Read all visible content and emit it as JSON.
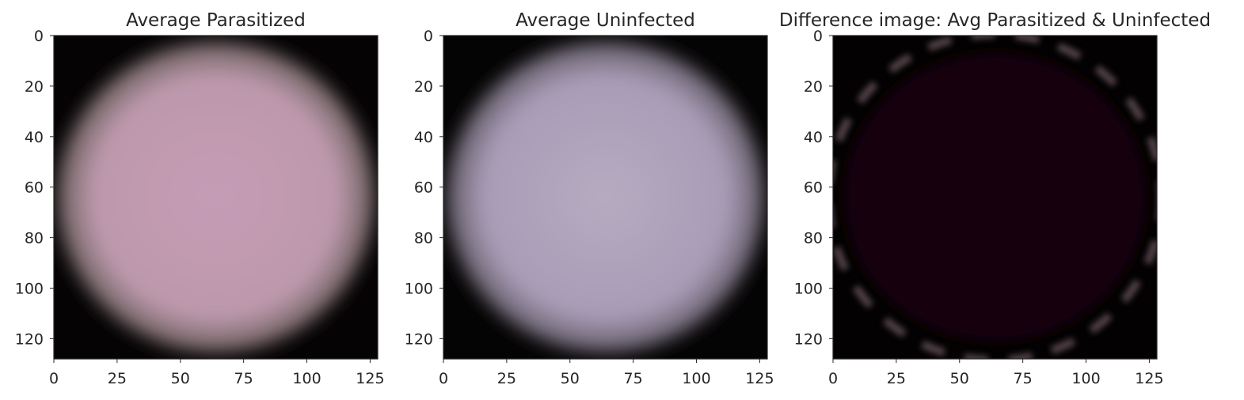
{
  "figure": {
    "panels": [
      {
        "id": "parasitized",
        "title": "Average Parasitized",
        "style": {
          "background": "#050304",
          "cell_color": "#bd99ac",
          "cell_center": "#c69cb6",
          "rim_color": "#7a6a6c",
          "rim_only": false
        }
      },
      {
        "id": "uninfected",
        "title": "Average Uninfected",
        "style": {
          "background": "#050404",
          "cell_color": "#a99cb6",
          "cell_center": "#b6abc1",
          "rim_color": "#6f6876",
          "rim_only": false
        }
      },
      {
        "id": "difference",
        "title": "Difference image: Avg Parasitized & Uninfected",
        "style": {
          "background": "#030101",
          "cell_color": "#120507",
          "cell_center": "#170609",
          "rim_color": "#6e5a62",
          "rim_only": true
        }
      }
    ],
    "axes": {
      "x_range": [
        0,
        128
      ],
      "y_range": [
        0,
        128
      ],
      "y_inverted": true,
      "x_ticks": [
        "0",
        "25",
        "50",
        "75",
        "100",
        "125"
      ],
      "y_ticks": [
        "0",
        "20",
        "40",
        "60",
        "80",
        "100",
        "120"
      ],
      "grid": false
    },
    "colors": {
      "text": "#262626",
      "spine": "#262626"
    }
  }
}
